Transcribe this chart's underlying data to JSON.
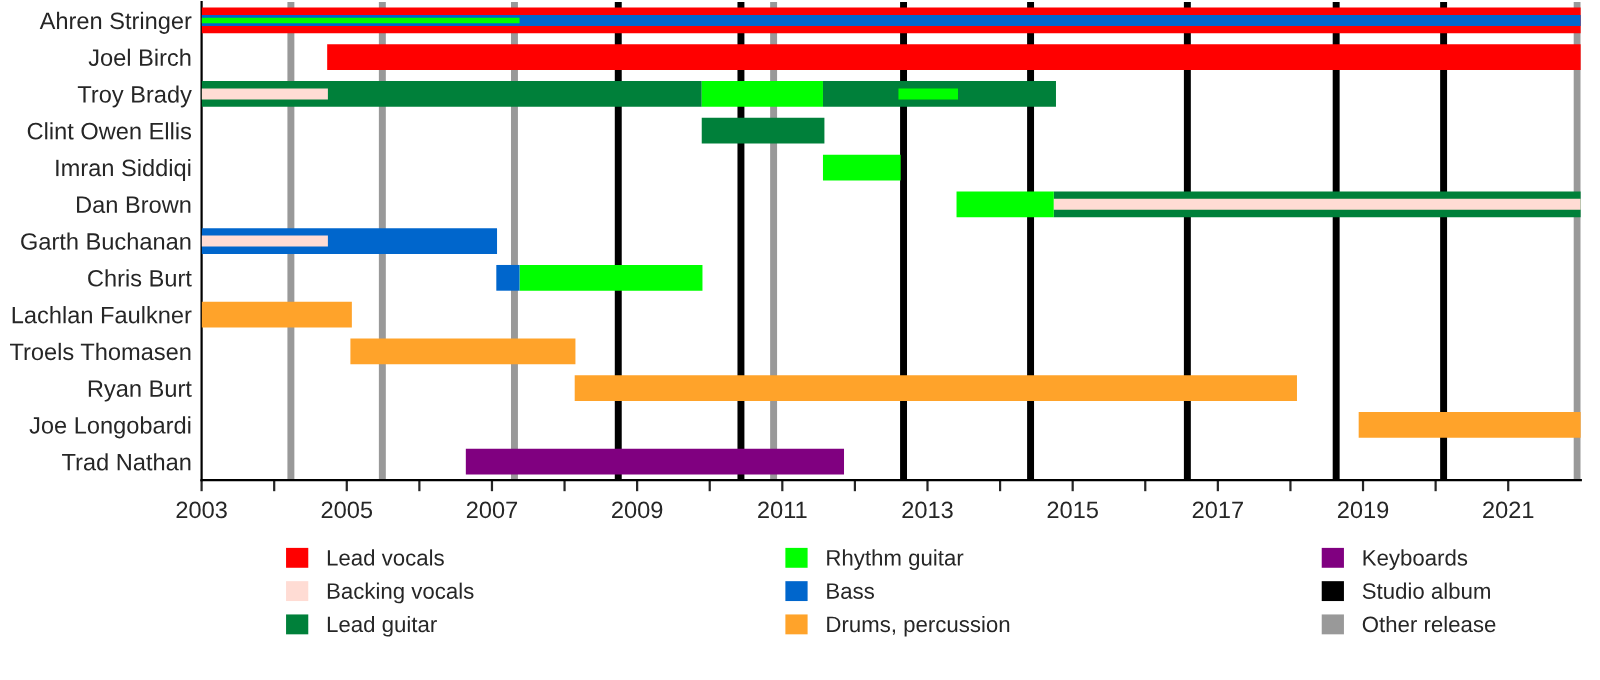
{
  "chart_data": {
    "type": "bar",
    "orientation": "horizontal",
    "categories": [
      "Ahren Stringer",
      "Joel Birch",
      "Troy Brady",
      "Clint Owen Ellis",
      "Imran Siddiqi",
      "Dan Brown",
      "Garth Buchanan",
      "Chris Burt",
      "Lachlan Faulkner",
      "Troels Thomasen",
      "Ryan Burt",
      "Joe Longobardi",
      "Trad Nathan"
    ],
    "series": [
      {
        "name": "Lead vocals",
        "color": "#ff0000",
        "base": [
          null,
          2004.73,
          null,
          null,
          null,
          null,
          null,
          null,
          null,
          null,
          null,
          null,
          null
        ],
        "values": [
          null,
          17.27,
          null,
          null,
          null,
          null,
          null,
          null,
          null,
          null,
          null,
          null,
          null
        ]
      },
      {
        "name": "Backing vocals",
        "color": "#ffdcd4",
        "base": [
          null,
          null,
          2003,
          null,
          null,
          2014.74,
          2003,
          null,
          null,
          null,
          null,
          null,
          null
        ],
        "values": [
          null,
          null,
          1.74,
          null,
          null,
          7.26,
          1.74,
          null,
          null,
          null,
          null,
          null,
          null
        ]
      },
      {
        "name": "Lead guitar",
        "color": "#00803a",
        "base": [
          null,
          null,
          2003,
          2009.89,
          null,
          2014.74,
          null,
          null,
          null,
          null,
          null,
          null,
          null
        ],
        "values": [
          null,
          null,
          6.89,
          1.69,
          null,
          7.26,
          null,
          null,
          null,
          null,
          null,
          null,
          null
        ]
      },
      {
        "name": "Rhythm guitar",
        "color": "#00ff00",
        "base": [
          null,
          null,
          2009.89,
          null,
          2011.56,
          2013.4,
          null,
          2007.38,
          null,
          null,
          null,
          null,
          null
        ],
        "values": [
          null,
          null,
          1.67,
          null,
          1.07,
          1.34,
          null,
          2.52,
          null,
          null,
          null,
          null,
          null
        ]
      },
      {
        "name": "Bass",
        "color": "#0066cc",
        "base": [
          null,
          null,
          null,
          null,
          null,
          null,
          2003,
          2007.06,
          null,
          null,
          null,
          null,
          null
        ],
        "values": [
          null,
          null,
          null,
          null,
          null,
          null,
          4.07,
          0.32,
          null,
          null,
          null,
          null,
          null
        ]
      },
      {
        "name": "Drums, percussion",
        "color": "#ffa32a",
        "base": [
          null,
          null,
          null,
          null,
          null,
          null,
          null,
          null,
          2003,
          2005.05,
          2008.14,
          2018.94,
          null
        ],
        "values": [
          null,
          null,
          null,
          null,
          null,
          null,
          null,
          null,
          2.07,
          3.1,
          9.95,
          3.06,
          null
        ]
      },
      {
        "name": "Keyboards",
        "color": "#800080",
        "base": [
          null,
          null,
          null,
          null,
          null,
          null,
          null,
          null,
          null,
          null,
          null,
          null,
          2006.64
        ],
        "values": [
          null,
          null,
          null,
          null,
          null,
          null,
          null,
          null,
          null,
          null,
          null,
          null,
          5.21
        ]
      },
      {
        "color": "#00ff00",
        "base": [
          2003,
          null,
          2012.6,
          null,
          null,
          null,
          null,
          null,
          null,
          null,
          null,
          null,
          null
        ],
        "values": [
          4.38,
          null,
          0.82,
          null,
          null,
          null,
          null,
          null,
          null,
          null,
          null,
          null,
          null
        ]
      },
      {
        "color": "#0066cc",
        "base": [
          2003,
          null,
          null,
          null,
          null,
          null,
          null,
          null,
          null,
          null,
          null,
          null,
          null
        ],
        "values": [
          19,
          null,
          null,
          null,
          null,
          null,
          null,
          null,
          null,
          null,
          null,
          null,
          null
        ]
      },
      {
        "color": "#ff0000",
        "base": [
          2003,
          null,
          null,
          null,
          null,
          null,
          null,
          null,
          null,
          null,
          null,
          null,
          null
        ],
        "values": [
          19,
          null,
          null,
          null,
          null,
          null,
          null,
          null,
          null,
          null,
          null,
          null,
          null
        ]
      },
      {
        "color": "#00803a",
        "base": [
          null,
          null,
          2011.56,
          null,
          null,
          null,
          null,
          null,
          null,
          null,
          null,
          null,
          null
        ],
        "values": [
          null,
          null,
          3.21,
          null,
          null,
          null,
          null,
          null,
          null,
          null,
          null,
          null,
          null
        ]
      }
    ],
    "ref_lines": [
      {
        "axis": "x",
        "value": 2008.74,
        "label": "Studio album",
        "color": "#000000"
      },
      {
        "axis": "x",
        "value": 2010.43,
        "color": "#000000"
      },
      {
        "axis": "x",
        "value": 2012.67,
        "color": "#000000"
      },
      {
        "axis": "x",
        "value": 2014.42,
        "color": "#000000"
      },
      {
        "axis": "x",
        "value": 2016.58,
        "color": "#000000"
      },
      {
        "axis": "x",
        "value": 2018.63,
        "color": "#000000"
      },
      {
        "axis": "x",
        "value": 2020.11,
        "color": "#000000"
      },
      {
        "axis": "x",
        "value": 2004.23,
        "label": "Other release",
        "color": "#999999"
      },
      {
        "axis": "x",
        "value": 2005.49,
        "color": "#999999"
      },
      {
        "axis": "x",
        "value": 2007.31,
        "color": "#999999"
      },
      {
        "axis": "x",
        "value": 2010.88,
        "color": "#999999"
      },
      {
        "axis": "x",
        "value": 2021.95,
        "color": "#999999"
      }
    ],
    "xlim": [
      2003,
      2022
    ],
    "xticks": [
      2003,
      {
        "value": 2004,
        "label": null
      },
      2005,
      {
        "value": 2006,
        "label": null
      },
      2007,
      {
        "value": 2008,
        "label": null
      },
      2009,
      {
        "value": 2010,
        "label": null
      },
      2011,
      {
        "value": 2012,
        "label": null
      },
      2013,
      {
        "value": 2014,
        "label": null
      },
      2015,
      {
        "value": 2016,
        "label": null
      },
      2017,
      {
        "value": 2018,
        "label": null
      },
      2019,
      {
        "value": 2020,
        "label": null
      },
      2021
    ],
    "grid": false,
    "legend": "bottom"
  }
}
